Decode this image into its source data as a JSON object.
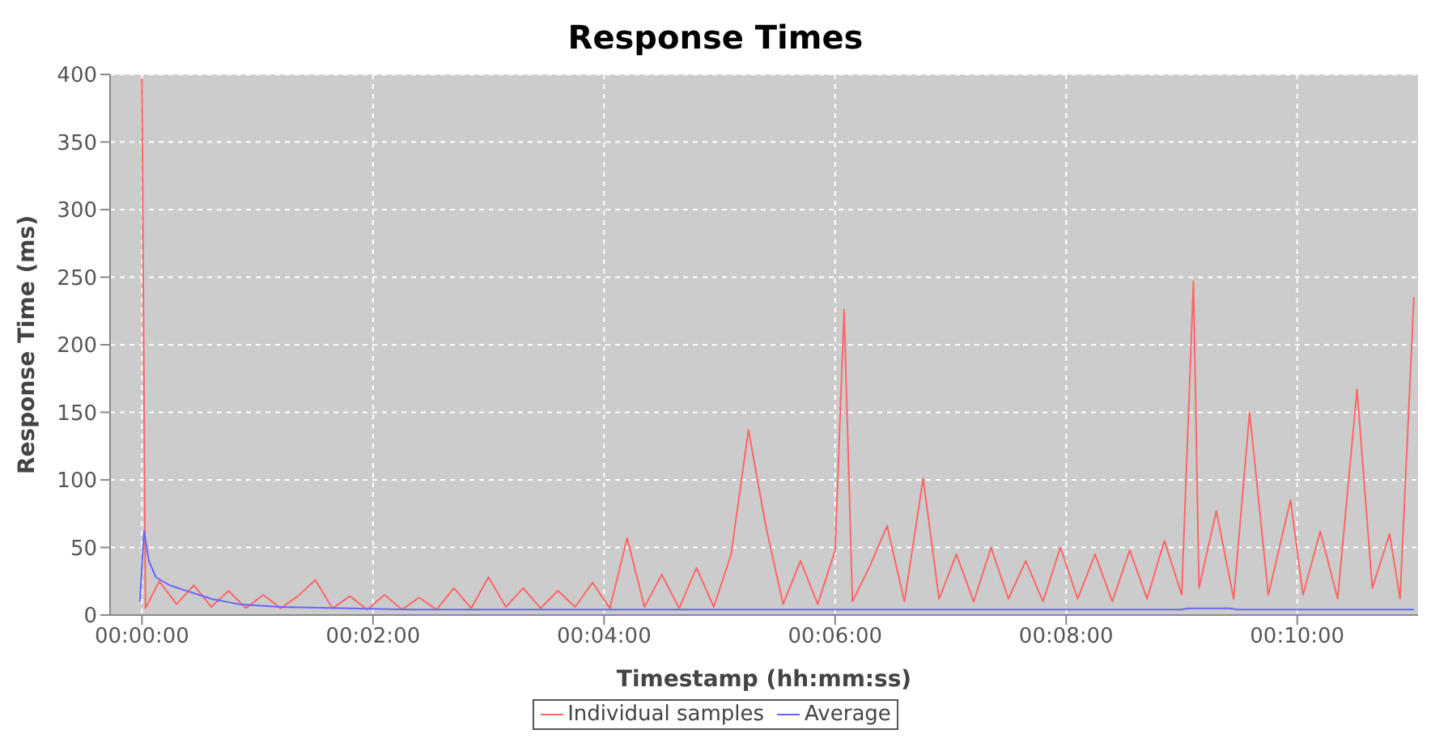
{
  "chart_data": {
    "type": "line",
    "title": "Response Times",
    "xlabel": "Timestamp (hh:mm:ss)",
    "ylabel": "Response Time (ms)",
    "xlim": [
      -0.0046,
      0.1841
    ],
    "xticks": [
      {
        "value": 0,
        "label": "00:00:00"
      },
      {
        "value": 0.033333,
        "label": "00:02:00"
      },
      {
        "value": 0.066667,
        "label": "00:04:00"
      },
      {
        "value": 0.1,
        "label": "00:06:00"
      },
      {
        "value": 0.133333,
        "label": "00:08:00"
      },
      {
        "value": 0.166667,
        "label": "00:10:00"
      }
    ],
    "ylim": [
      0,
      400
    ],
    "yticks": [
      0,
      50,
      100,
      150,
      200,
      250,
      300,
      350,
      400
    ],
    "grid": true,
    "legend": "bottom",
    "series": [
      {
        "name": "Individual samples",
        "color": "#ff6666",
        "x": [
          0,
          0.0005,
          0.0025,
          0.005,
          0.0075,
          0.01,
          0.0125,
          0.015,
          0.0175,
          0.02,
          0.0225,
          0.025,
          0.0275,
          0.03,
          0.0325,
          0.035,
          0.0375,
          0.04,
          0.0425,
          0.045,
          0.0475,
          0.05,
          0.0525,
          0.055,
          0.0575,
          0.06,
          0.0625,
          0.065,
          0.0675,
          0.07,
          0.0725,
          0.075,
          0.0775,
          0.08,
          0.0825,
          0.085,
          0.0875,
          0.09,
          0.0925,
          0.095,
          0.0975,
          0.1,
          0.1013,
          0.1025,
          0.105,
          0.1075,
          0.11,
          0.1127,
          0.115,
          0.1175,
          0.12,
          0.1225,
          0.125,
          0.1275,
          0.13,
          0.1325,
          0.135,
          0.1375,
          0.14,
          0.1425,
          0.145,
          0.1475,
          0.15,
          0.1517,
          0.1525,
          0.155,
          0.1575,
          0.1598,
          0.1625,
          0.1657,
          0.1675,
          0.17,
          0.1725,
          0.1753,
          0.1775,
          0.18,
          0.1815,
          0.1835
        ],
        "values": [
          397,
          5,
          25,
          8,
          22,
          6,
          18,
          5,
          15,
          5,
          14,
          26,
          5,
          14,
          4,
          15,
          4,
          13,
          4,
          20,
          5,
          28,
          6,
          20,
          5,
          18,
          6,
          24,
          5,
          57,
          6,
          30,
          5,
          35,
          6,
          45,
          137,
          66,
          8,
          40,
          8,
          48,
          226,
          10,
          36,
          66,
          10,
          101,
          12,
          45,
          10,
          50,
          12,
          40,
          10,
          50,
          12,
          45,
          10,
          48,
          12,
          55,
          15,
          247,
          20,
          77,
          12,
          150,
          15,
          85,
          15,
          62,
          12,
          167,
          20,
          60,
          12,
          235
        ]
      },
      {
        "name": "Average",
        "color": "#6666ff",
        "x": [
          -0.0003,
          0.0003,
          0.001,
          0.002,
          0.004,
          0.007,
          0.01,
          0.014,
          0.02,
          0.03,
          0.04,
          0.15,
          0.151,
          0.157,
          0.158,
          0.1835
        ],
        "values": [
          10,
          62,
          40,
          28,
          22,
          17,
          12,
          8,
          6,
          5,
          4,
          4,
          5,
          5,
          4,
          4
        ]
      }
    ]
  }
}
